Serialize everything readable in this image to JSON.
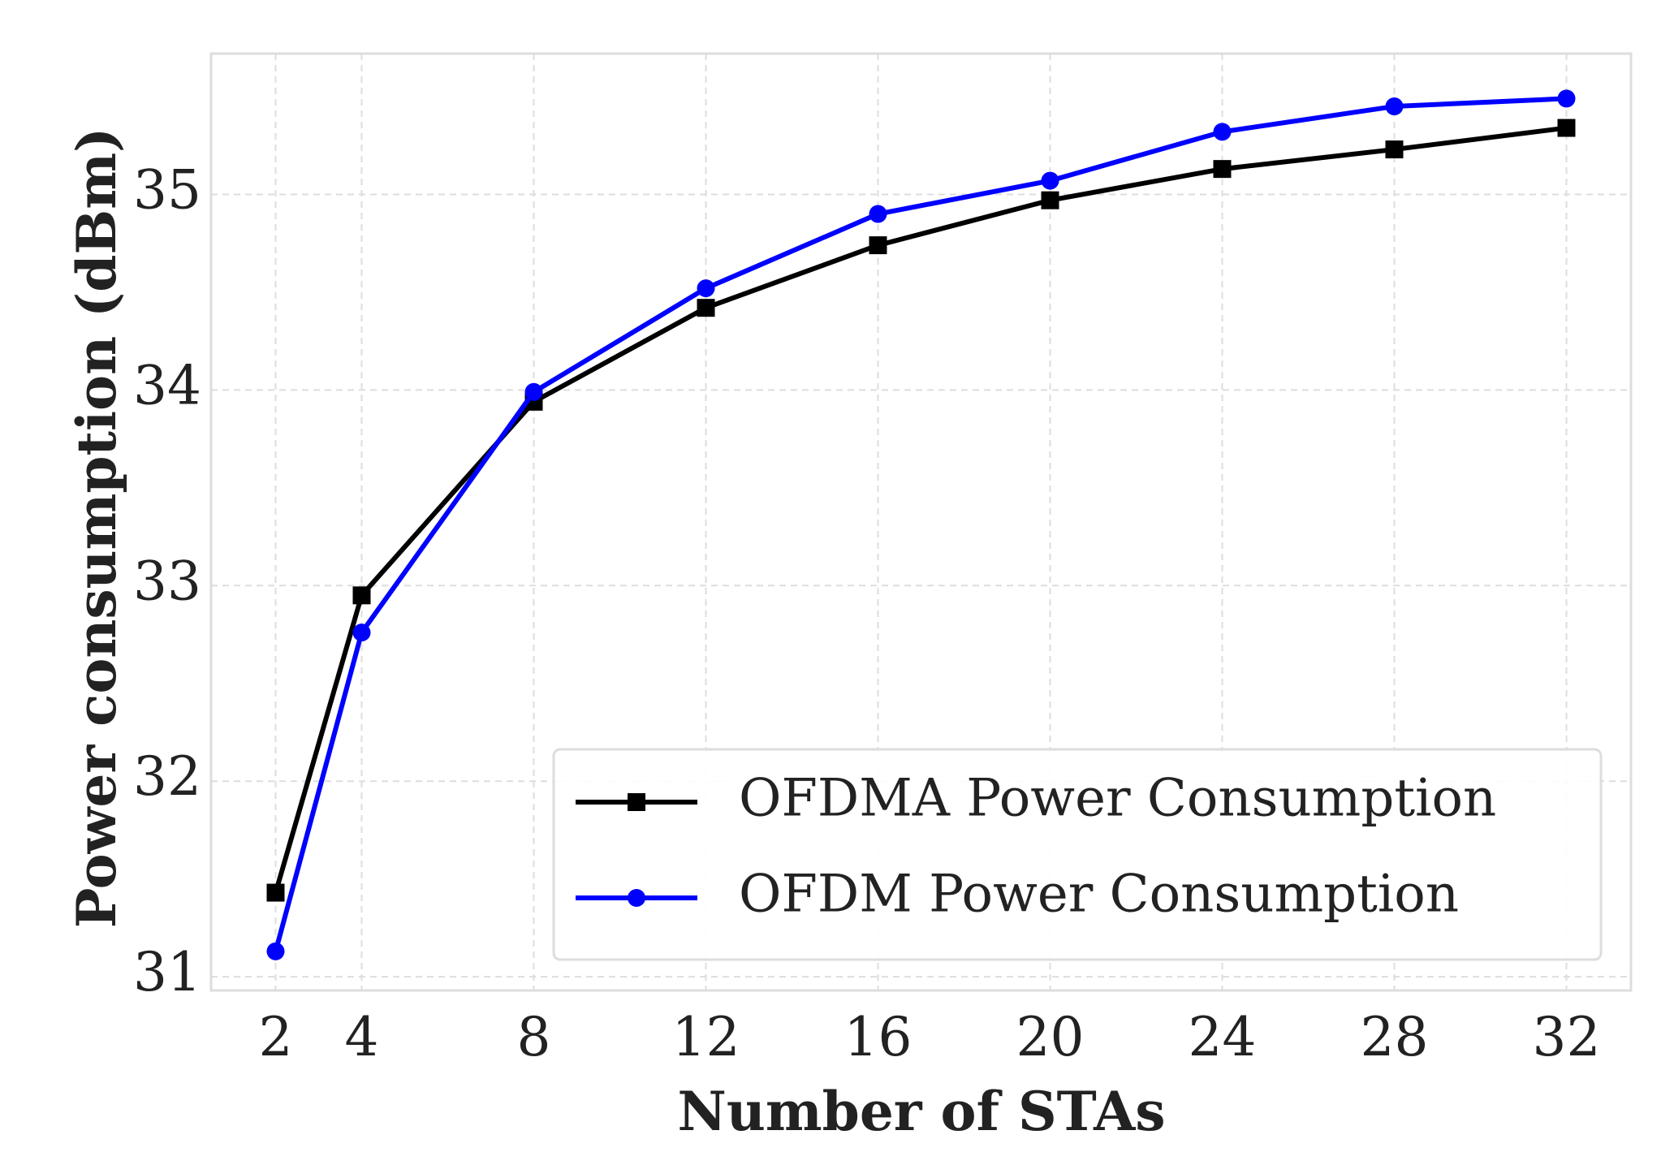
{
  "chart_data": {
    "type": "line",
    "x_label": "Number of STAs",
    "y_label": "Power consumption (dBm)",
    "x": [
      2,
      4,
      8,
      12,
      16,
      20,
      24,
      28,
      32
    ],
    "series": [
      {
        "name": "OFDMA Power Consumption",
        "color": "#000000",
        "marker": "square",
        "values": [
          31.43,
          32.95,
          33.94,
          34.42,
          34.74,
          34.97,
          35.13,
          35.23,
          35.34
        ]
      },
      {
        "name": "OFDM Power Consumption",
        "color": "#0000ff",
        "marker": "circle",
        "values": [
          31.13,
          32.76,
          33.99,
          34.52,
          34.9,
          35.07,
          35.32,
          35.45,
          35.49
        ]
      }
    ],
    "xlim": [
      0.5,
      33.5
    ],
    "xticks": [
      2,
      4,
      8,
      12,
      16,
      20,
      24,
      28,
      32
    ],
    "ylim": [
      30.93,
      35.72
    ],
    "yticks": [
      31,
      32,
      33,
      34,
      35
    ],
    "grid": true,
    "legend": "lower right"
  }
}
